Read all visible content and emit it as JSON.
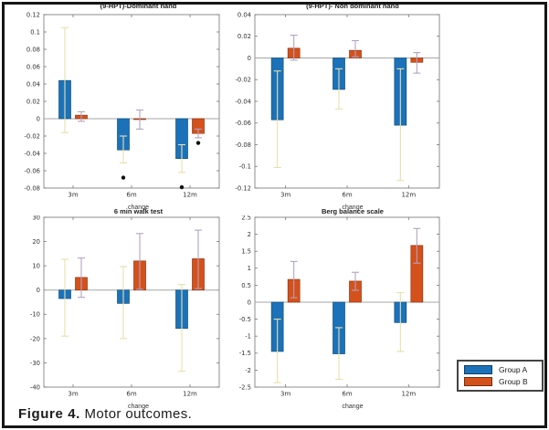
{
  "figure": {
    "caption_label": "Figure 4.",
    "caption_text": " Motor outcomes."
  },
  "legend": {
    "entries": [
      {
        "label": "Group A",
        "color": "#1c72b8"
      },
      {
        "label": "Group B",
        "color": "#d4511c"
      }
    ]
  },
  "colors": {
    "group_a": "#1c72b8",
    "group_a_edge": "#11507f",
    "group_b": "#d4511c",
    "group_b_edge": "#96350f",
    "whisker_a": "#e7dfac",
    "whisker_b": "#b3a2c0",
    "axis_box": "#8c8c8c",
    "zero_line": "#a6a6a6",
    "tick": "#777777",
    "text": "#333333",
    "outlier": "#111111"
  },
  "chart_data": [
    {
      "type": "bar",
      "title": "(9-HPT)-Dominant hand",
      "xlabel": "change",
      "categories": [
        "3m",
        "6m",
        "12m"
      ],
      "ylim": [
        -0.08,
        0.12
      ],
      "yticks": [
        -0.08,
        -0.06,
        -0.04,
        -0.02,
        0,
        0.02,
        0.04,
        0.06,
        0.08,
        0.1,
        0.12
      ],
      "ytick_labels": [
        "-0.08",
        "-0.06",
        "-0.04",
        "-0.02",
        "0",
        "0.02",
        "0.04",
        "0.06",
        "0.08",
        "0.1",
        "0.12"
      ],
      "grid": false,
      "series": [
        {
          "name": "Group A",
          "values": [
            0.044,
            -0.036,
            -0.046
          ],
          "err_lo": [
            -0.016,
            -0.051,
            -0.062
          ],
          "err_hi": [
            0.105,
            -0.02,
            -0.03
          ]
        },
        {
          "name": "Group B",
          "values": [
            0.004,
            -0.001,
            -0.017
          ],
          "err_lo": [
            -0.003,
            -0.012,
            -0.022
          ],
          "err_hi": [
            0.008,
            0.01,
            -0.012
          ]
        }
      ],
      "outliers": [
        {
          "category": "6m",
          "series": "Group A",
          "value": -0.068
        },
        {
          "category": "12m",
          "series": "Group A",
          "value": -0.079
        },
        {
          "category": "12m",
          "series": "Group B",
          "value": -0.028
        }
      ]
    },
    {
      "type": "bar",
      "title": "(9-HPT)- Non dominant hand",
      "xlabel": "change",
      "categories": [
        "3m",
        "6m",
        "12m"
      ],
      "ylim": [
        -0.12,
        0.04
      ],
      "yticks": [
        -0.12,
        -0.1,
        -0.08,
        -0.06,
        -0.04,
        -0.02,
        0,
        0.02,
        0.04
      ],
      "ytick_labels": [
        "-0.12",
        "-0.1",
        "-0.08",
        "-0.06",
        "-0.04",
        "-0.02",
        "0",
        "0.02",
        "0.04"
      ],
      "grid": false,
      "series": [
        {
          "name": "Group A",
          "values": [
            -0.057,
            -0.029,
            -0.062
          ],
          "err_lo": [
            -0.101,
            -0.047,
            -0.113
          ],
          "err_hi": [
            -0.012,
            -0.01,
            -0.01
          ]
        },
        {
          "name": "Group B",
          "values": [
            0.009,
            0.007,
            -0.004
          ],
          "err_lo": [
            -0.002,
            0.001,
            -0.014
          ],
          "err_hi": [
            0.021,
            0.016,
            0.005
          ]
        }
      ],
      "outliers": []
    },
    {
      "type": "bar",
      "title": "6 min walk test",
      "xlabel": "change",
      "categories": [
        "3m",
        "6m",
        "12m"
      ],
      "ylim": [
        -40,
        30
      ],
      "yticks": [
        -40,
        -30,
        -20,
        -10,
        0,
        10,
        20,
        30
      ],
      "ytick_labels": [
        "-40",
        "-30",
        "-20",
        "-10",
        "0",
        "10",
        "20",
        "30"
      ],
      "grid": false,
      "series": [
        {
          "name": "Group A",
          "values": [
            -3.5,
            -5.5,
            -15.8
          ],
          "err_lo": [
            -19,
            -20,
            -33.5
          ],
          "err_hi": [
            12.7,
            9.7,
            2.3
          ]
        },
        {
          "name": "Group B",
          "values": [
            5.2,
            12,
            12.9
          ],
          "err_lo": [
            -3,
            0.3,
            0.6
          ],
          "err_hi": [
            13.2,
            23.3,
            24.7
          ]
        }
      ],
      "outliers": []
    },
    {
      "type": "bar",
      "title": "Berg balance scale",
      "xlabel": "change",
      "categories": [
        "3m",
        "6m",
        "12m"
      ],
      "ylim": [
        -2.5,
        2.5
      ],
      "yticks": [
        -2.5,
        -2,
        -1.5,
        -1,
        -0.5,
        0,
        0.5,
        1,
        1.5,
        2,
        2.5
      ],
      "ytick_labels": [
        "-2.5",
        "-2",
        "-1.5",
        "-1",
        "-0.5",
        "0",
        "0.5",
        "1",
        "1.5",
        "2",
        "2.5"
      ],
      "grid": false,
      "series": [
        {
          "name": "Group A",
          "values": [
            -1.45,
            -1.52,
            -0.6
          ],
          "err_lo": [
            -2.37,
            -2.27,
            -1.45
          ],
          "err_hi": [
            -0.5,
            -0.75,
            0.28
          ]
        },
        {
          "name": "Group B",
          "values": [
            0.67,
            0.62,
            1.67
          ],
          "err_lo": [
            0.13,
            0.35,
            1.15
          ],
          "err_hi": [
            1.2,
            0.88,
            2.17
          ]
        }
      ],
      "outliers": []
    }
  ]
}
